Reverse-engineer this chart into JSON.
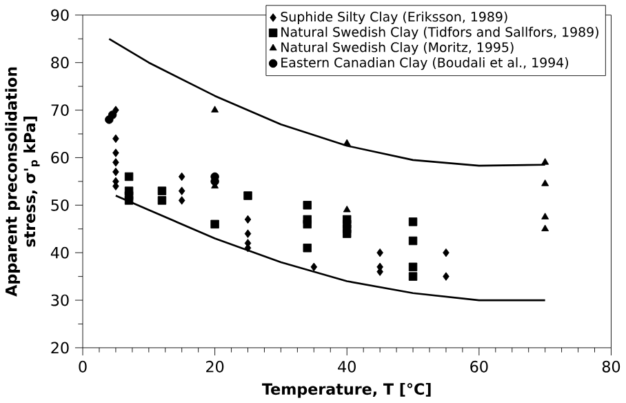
{
  "chart_data": {
    "type": "scatter",
    "xlabel": "Temperature, T [°C]",
    "ylabel": "Apparent preconsolidation stress, σ'$_{p}$ kPa]",
    "xlim": [
      0,
      80
    ],
    "ylim": [
      20,
      90
    ],
    "xticks": [
      0,
      20,
      40,
      60,
      80
    ],
    "yticks": [
      20,
      30,
      40,
      50,
      60,
      70,
      80,
      90
    ],
    "grid": false,
    "legend": "top right",
    "series": [
      {
        "name": "Suphide Silty Clay (Eriksson, 1989)",
        "color": "#000000",
        "marker": "diamond",
        "x": [
          5,
          5,
          5,
          5,
          5,
          5,
          5,
          15,
          15,
          15,
          25,
          25,
          25,
          25,
          35,
          45,
          45,
          45,
          55,
          55
        ],
        "values": [
          70,
          64,
          61,
          59,
          57,
          55,
          54,
          56,
          53,
          51,
          47,
          44,
          42,
          41,
          37,
          40,
          37,
          36,
          40,
          35
        ]
      },
      {
        "name": "Natural Swedish Clay (Tidfors and Sallfors, 1989)",
        "color": "#000000",
        "marker": "square",
        "x": [
          7,
          7,
          7,
          7,
          12,
          12,
          20,
          25,
          34,
          34,
          34,
          34,
          40,
          40,
          40,
          40,
          50,
          50,
          50,
          50
        ],
        "values": [
          56,
          53,
          52,
          51,
          53,
          51,
          46,
          52,
          50,
          47,
          46,
          41,
          47,
          46,
          45,
          44,
          46.5,
          42.5,
          37,
          35
        ]
      },
      {
        "name": "Natural Swedish Clay (Moritz, 1995)",
        "color": "#000000",
        "marker": "triangle",
        "x": [
          20,
          20,
          40,
          40,
          70,
          70,
          70,
          70
        ],
        "values": [
          70,
          54,
          63,
          49,
          59,
          54.5,
          47.5,
          45
        ]
      },
      {
        "name": "Eastern Canadian Clay (Boudali et al., 1994)",
        "color": "#000000",
        "marker": "circle",
        "x": [
          4,
          4.5,
          20,
          20
        ],
        "values": [
          68,
          69,
          56,
          55
        ]
      },
      {
        "type": "line",
        "color": "#000000",
        "marker": "none",
        "x": [
          4,
          10,
          20,
          30,
          40,
          50,
          60,
          70
        ],
        "values": [
          85,
          80,
          73,
          67,
          62.5,
          59.5,
          58.3,
          58.5
        ]
      },
      {
        "type": "line",
        "color": "#000000",
        "marker": "none",
        "x": [
          5,
          10,
          20,
          30,
          40,
          50,
          60,
          70
        ],
        "values": [
          52,
          49,
          43,
          38,
          34,
          31.5,
          30,
          30
        ]
      }
    ]
  }
}
